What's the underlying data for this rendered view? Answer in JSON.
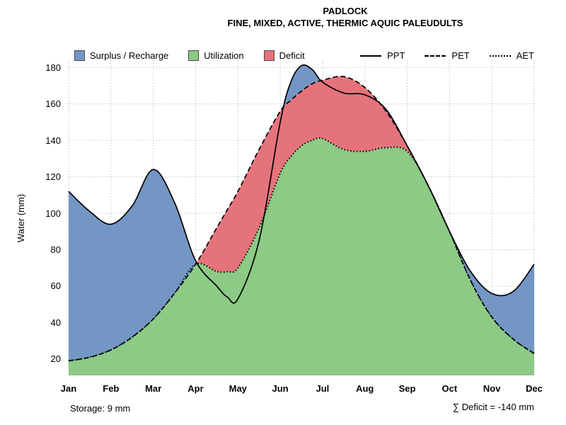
{
  "chart_data": {
    "type": "area",
    "title": "PADLOCK",
    "subtitle": "FINE, MIXED, ACTIVE, THERMIC AQUIC PALEUDULTS",
    "ylabel": "Water (mm)",
    "xlabel": "",
    "ylim": [
      11,
      184
    ],
    "yticks": [
      20,
      40,
      60,
      80,
      100,
      120,
      140,
      160,
      180
    ],
    "months": [
      "Jan",
      "Feb",
      "Mar",
      "Apr",
      "May",
      "Jun",
      "Jul",
      "Aug",
      "Sep",
      "Oct",
      "Nov",
      "Dec"
    ],
    "x": [
      0,
      0.5,
      1,
      1.5,
      2,
      2.5,
      3,
      3.5,
      3.75,
      4,
      4.5,
      5,
      5.25,
      5.5,
      5.75,
      6,
      6.5,
      7,
      7.5,
      8,
      8.5,
      9,
      9.5,
      10,
      10.5,
      11
    ],
    "series": [
      {
        "name": "PPT",
        "line": "solid",
        "values": [
          112,
          101,
          94,
          104,
          124,
          106,
          74,
          60,
          54,
          53,
          85,
          150,
          172,
          181,
          179,
          172,
          166,
          165,
          157,
          137,
          115,
          90,
          68,
          56,
          57,
          72
        ]
      },
      {
        "name": "PET",
        "line": "dashed",
        "values": [
          19,
          21,
          25,
          32,
          42,
          56,
          72,
          92,
          102,
          112,
          135,
          156,
          162,
          167,
          171,
          173,
          175,
          169,
          156,
          137,
          115,
          90,
          63,
          43,
          31,
          23
        ]
      },
      {
        "name": "AET",
        "line": "dotted",
        "values": [
          19,
          21,
          25,
          32,
          42,
          56,
          72,
          68,
          68,
          70,
          92,
          122,
          131,
          137,
          140,
          141,
          135,
          134,
          136,
          134,
          115,
          90,
          63,
          43,
          31,
          23
        ]
      }
    ],
    "areas": [
      {
        "name": "Surplus / Recharge",
        "color": "#7396C5",
        "between": [
          "PPT",
          "PET"
        ],
        "where": "PPT > PET"
      },
      {
        "name": "Utilization",
        "color": "#8CCA85",
        "between": [
          "AET",
          "baseline"
        ],
        "where": "always"
      },
      {
        "name": "Deficit",
        "color": "#E5737C",
        "between": [
          "PET",
          "AET"
        ],
        "where": "PET > AET"
      }
    ],
    "annotations": {
      "storage_label": "Storage: 9 mm",
      "deficit_label": "∑ Deficit = -140 mm",
      "storage_mm": 9,
      "deficit_sum_mm": -140
    },
    "grid": true,
    "legend_position": "top",
    "grid_color": "#c3c3c3",
    "line_color": "#000000"
  }
}
